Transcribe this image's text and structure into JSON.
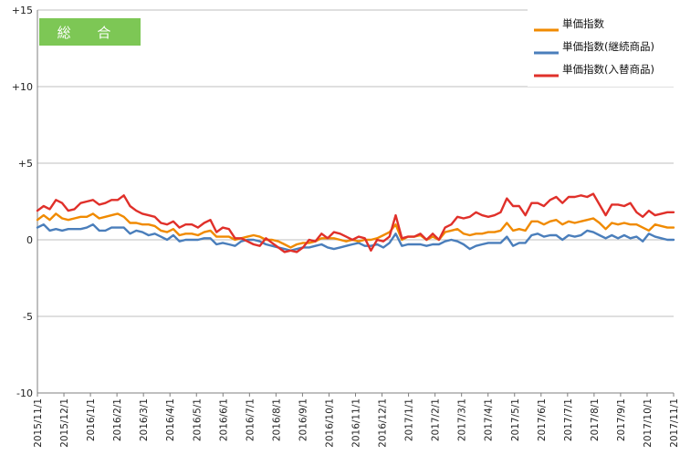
{
  "chart_data": {
    "type": "line",
    "title_badge": "総 合",
    "colors": {
      "badge": "#7dc755",
      "grid": "#bfbfbf",
      "axis": "#7f7f7f"
    },
    "ylim": [
      -10,
      15
    ],
    "yticks": [
      {
        "value": 15,
        "label": "+15"
      },
      {
        "value": 10,
        "label": "+10"
      },
      {
        "value": 5,
        "label": "+5"
      },
      {
        "value": 0,
        "label": "0"
      },
      {
        "value": -5,
        "label": "-5"
      },
      {
        "value": -10,
        "label": "-10"
      }
    ],
    "x_tick_labels": [
      "2015/11/1",
      "2015/12/1",
      "2016/1/1",
      "2016/2/1",
      "2016/3/1",
      "2016/4/1",
      "2016/5/1",
      "2016/6/1",
      "2016/7/1",
      "2016/8/1",
      "2016/9/1",
      "2016/10/1",
      "2016/11/1",
      "2016/12/1",
      "2017/1/1",
      "2017/2/1",
      "2017/3/1",
      "2017/4/1",
      "2017/5/1",
      "2017/6/1",
      "2017/7/1",
      "2017/8/1",
      "2017/9/1",
      "2017/10/1",
      "2017/11/1"
    ],
    "grid": true,
    "legend_position": "top-right",
    "series": [
      {
        "name": "単価指数",
        "color": "#f08a00",
        "values": [
          1.3,
          1.6,
          1.3,
          1.7,
          1.4,
          1.3,
          1.4,
          1.5,
          1.5,
          1.7,
          1.4,
          1.5,
          1.6,
          1.7,
          1.5,
          1.1,
          1.1,
          1.0,
          1.0,
          0.9,
          0.6,
          0.5,
          0.7,
          0.3,
          0.4,
          0.4,
          0.3,
          0.5,
          0.6,
          0.2,
          0.2,
          0.2,
          0.0,
          0.1,
          0.2,
          0.3,
          0.2,
          0.0,
          0.0,
          -0.1,
          -0.3,
          -0.5,
          -0.3,
          -0.2,
          -0.2,
          -0.1,
          0.1,
          0.1,
          0.1,
          0.0,
          -0.1,
          0.0,
          -0.1,
          0.0,
          0.0,
          0.1,
          0.3,
          0.5,
          1.0,
          0.0,
          0.2,
          0.2,
          0.3,
          0.0,
          0.2,
          0.0,
          0.5,
          0.6,
          0.7,
          0.4,
          0.3,
          0.4,
          0.4,
          0.5,
          0.5,
          0.6,
          1.1,
          0.6,
          0.7,
          0.6,
          1.2,
          1.2,
          1.0,
          1.2,
          1.3,
          1.0,
          1.2,
          1.1,
          1.2,
          1.3,
          1.4,
          1.1,
          0.7,
          1.1,
          1.0,
          1.1,
          1.0,
          1.0,
          0.8,
          0.6,
          1.0,
          0.9,
          0.8,
          0.8
        ]
      },
      {
        "name": "単価指数(継続商品)",
        "color": "#4a7ebb",
        "values": [
          0.8,
          1.0,
          0.6,
          0.7,
          0.6,
          0.7,
          0.7,
          0.7,
          0.8,
          1.0,
          0.6,
          0.6,
          0.8,
          0.8,
          0.8,
          0.4,
          0.6,
          0.5,
          0.3,
          0.4,
          0.2,
          0.0,
          0.3,
          -0.1,
          0.0,
          0.0,
          0.0,
          0.1,
          0.1,
          -0.3,
          -0.2,
          -0.3,
          -0.4,
          -0.1,
          0.0,
          0.0,
          -0.1,
          -0.3,
          -0.4,
          -0.5,
          -0.6,
          -0.7,
          -0.6,
          -0.5,
          -0.5,
          -0.4,
          -0.3,
          -0.5,
          -0.6,
          -0.5,
          -0.4,
          -0.3,
          -0.2,
          -0.4,
          -0.4,
          -0.3,
          -0.5,
          -0.2,
          0.4,
          -0.4,
          -0.3,
          -0.3,
          -0.3,
          -0.4,
          -0.3,
          -0.3,
          -0.1,
          0.0,
          -0.1,
          -0.3,
          -0.6,
          -0.4,
          -0.3,
          -0.2,
          -0.2,
          -0.2,
          0.2,
          -0.4,
          -0.2,
          -0.2,
          0.3,
          0.4,
          0.2,
          0.3,
          0.3,
          0.0,
          0.3,
          0.2,
          0.3,
          0.6,
          0.5,
          0.3,
          0.1,
          0.3,
          0.1,
          0.3,
          0.1,
          0.2,
          -0.1,
          0.4,
          0.2,
          0.1,
          0.0,
          0.0
        ]
      },
      {
        "name": "単価指数(入替商品)",
        "color": "#e0302a",
        "values": [
          1.9,
          2.2,
          2.0,
          2.6,
          2.4,
          1.9,
          2.0,
          2.4,
          2.5,
          2.6,
          2.3,
          2.4,
          2.6,
          2.6,
          2.9,
          2.2,
          1.9,
          1.7,
          1.6,
          1.5,
          1.1,
          1.0,
          1.2,
          0.8,
          1.0,
          1.0,
          0.8,
          1.1,
          1.3,
          0.5,
          0.8,
          0.7,
          0.1,
          0.1,
          -0.1,
          -0.3,
          -0.4,
          0.1,
          -0.2,
          -0.5,
          -0.8,
          -0.7,
          -0.8,
          -0.5,
          0.0,
          -0.1,
          0.4,
          0.1,
          0.5,
          0.4,
          0.2,
          0.0,
          0.2,
          0.1,
          -0.7,
          0.0,
          -0.1,
          0.2,
          1.6,
          0.1,
          0.2,
          0.2,
          0.4,
          0.0,
          0.4,
          0.0,
          0.8,
          1.0,
          1.5,
          1.4,
          1.5,
          1.8,
          1.6,
          1.5,
          1.6,
          1.8,
          2.7,
          2.2,
          2.2,
          1.6,
          2.4,
          2.4,
          2.2,
          2.6,
          2.8,
          2.4,
          2.8,
          2.8,
          2.9,
          2.8,
          3.0,
          2.3,
          1.6,
          2.3,
          2.3,
          2.2,
          2.4,
          1.8,
          1.5,
          1.9,
          1.6,
          1.7,
          1.8,
          1.8
        ]
      }
    ]
  }
}
